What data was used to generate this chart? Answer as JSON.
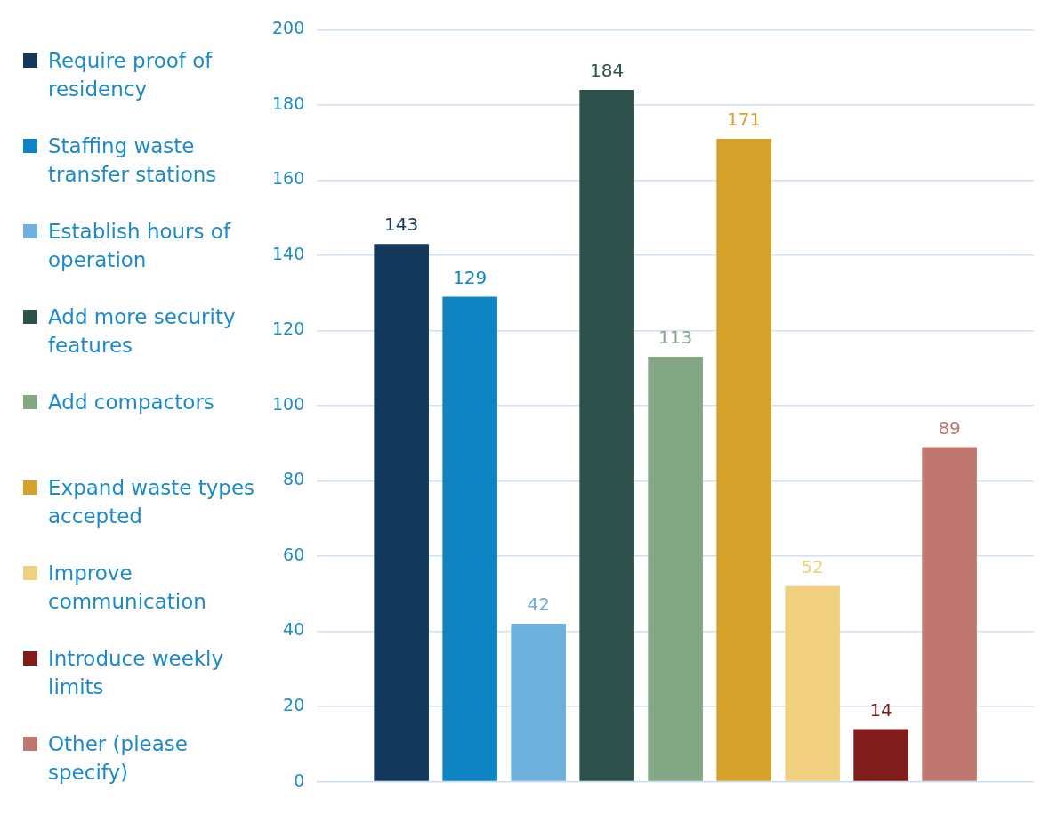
{
  "chart_data": {
    "type": "bar",
    "categories": [
      null
    ],
    "series": [
      {
        "name": "Require proof of residency",
        "color": "#12395c",
        "values": [
          143
        ]
      },
      {
        "name": "Staffing waste transfer stations",
        "color": "#0e84c2",
        "values": [
          129
        ]
      },
      {
        "name": "Establish hours of operation",
        "color": "#6eb0dc",
        "values": [
          42
        ]
      },
      {
        "name": "Add more security features",
        "color": "#2e524b",
        "values": [
          184
        ]
      },
      {
        "name": "Add compactors",
        "color": "#84a785",
        "values": [
          113
        ]
      },
      {
        "name": "Expand waste types accepted",
        "color": "#d4a22a",
        "values": [
          171
        ]
      },
      {
        "name": "Improve communication",
        "color": "#f0d07f",
        "values": [
          52
        ]
      },
      {
        "name": "Introduce weekly limits",
        "color": "#801c1a",
        "values": [
          14
        ]
      },
      {
        "name": "Other (please specify)",
        "color": "#c0776f",
        "values": [
          89
        ]
      }
    ],
    "ylim": [
      0,
      200
    ],
    "yticks": [
      0,
      20,
      40,
      60,
      80,
      100,
      120,
      140,
      160,
      180,
      200
    ],
    "grid": "y",
    "legend": "left",
    "data_labels": true
  }
}
